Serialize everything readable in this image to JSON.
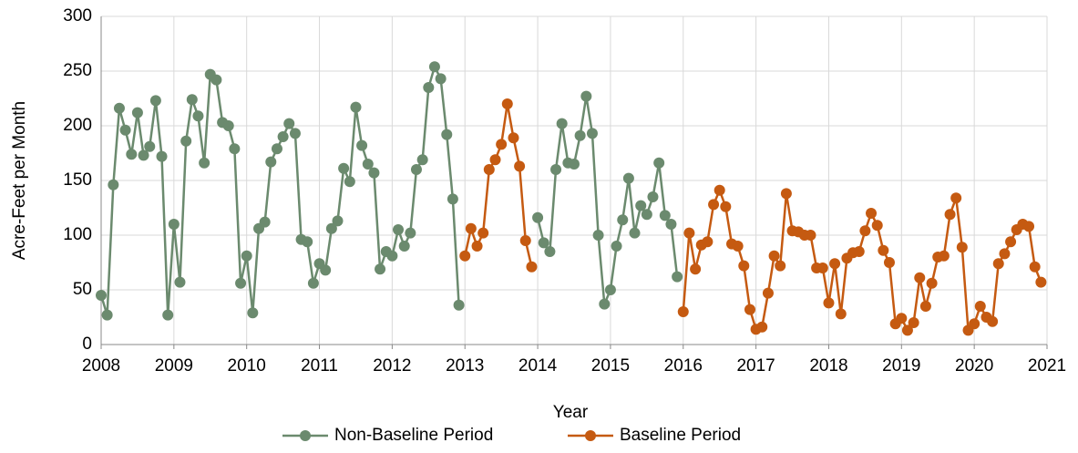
{
  "chart_data": {
    "type": "line",
    "x_label": "Year",
    "y_label": "Acre-Feet per Month",
    "x": [
      2008,
      2008.083,
      2008.167,
      2008.25,
      2008.333,
      2008.417,
      2008.5,
      2008.583,
      2008.667,
      2008.75,
      2008.833,
      2008.917,
      2009,
      2009.083,
      2009.167,
      2009.25,
      2009.333,
      2009.417,
      2009.5,
      2009.583,
      2009.667,
      2009.75,
      2009.833,
      2009.917,
      2010,
      2010.083,
      2010.167,
      2010.25,
      2010.333,
      2010.417,
      2010.5,
      2010.583,
      2010.667,
      2010.75,
      2010.833,
      2010.917,
      2011,
      2011.083,
      2011.167,
      2011.25,
      2011.333,
      2011.417,
      2011.5,
      2011.583,
      2011.667,
      2011.75,
      2011.833,
      2011.917,
      2012,
      2012.083,
      2012.167,
      2012.25,
      2012.333,
      2012.417,
      2012.5,
      2012.583,
      2012.667,
      2012.75,
      2012.833,
      2012.917,
      2013,
      2013.083,
      2013.167,
      2013.25,
      2013.333,
      2013.417,
      2013.5,
      2013.583,
      2013.667,
      2013.75,
      2013.833,
      2013.917,
      2014,
      2014.083,
      2014.167,
      2014.25,
      2014.333,
      2014.417,
      2014.5,
      2014.583,
      2014.667,
      2014.75,
      2014.833,
      2014.917,
      2015,
      2015.083,
      2015.167,
      2015.25,
      2015.333,
      2015.417,
      2015.5,
      2015.583,
      2015.667,
      2015.75,
      2015.833,
      2015.917,
      2016,
      2016.083,
      2016.167,
      2016.25,
      2016.333,
      2016.417,
      2016.5,
      2016.583,
      2016.667,
      2016.75,
      2016.833,
      2016.917,
      2017,
      2017.083,
      2017.167,
      2017.25,
      2017.333,
      2017.417,
      2017.5,
      2017.583,
      2017.667,
      2017.75,
      2017.833,
      2017.917,
      2018,
      2018.083,
      2018.167,
      2018.25,
      2018.333,
      2018.417,
      2018.5,
      2018.583,
      2018.667,
      2018.75,
      2018.833,
      2018.917,
      2019,
      2019.083,
      2019.167,
      2019.25,
      2019.333,
      2019.417,
      2019.5,
      2019.583,
      2019.667,
      2019.75,
      2019.833,
      2019.917,
      2020,
      2020.083,
      2020.167,
      2020.25,
      2020.333,
      2020.417,
      2020.5,
      2020.583,
      2020.667,
      2020.75,
      2020.833,
      2020.917
    ],
    "series": [
      {
        "name": "Non-Baseline Period",
        "color": "#6b8a6e",
        "values": [
          45,
          27,
          146,
          216,
          196,
          174,
          212,
          173,
          181,
          223,
          172,
          27,
          110,
          57,
          186,
          224,
          209,
          166,
          247,
          242,
          203,
          200,
          179,
          56,
          81,
          29,
          106,
          112,
          167,
          179,
          190,
          202,
          193,
          96,
          94,
          56,
          74,
          68,
          106,
          113,
          161,
          149,
          217,
          182,
          165,
          157,
          69,
          85,
          81,
          105,
          90,
          102,
          160,
          169,
          235,
          254,
          243,
          192,
          133,
          36,
          null,
          null,
          null,
          null,
          null,
          null,
          null,
          null,
          null,
          null,
          null,
          null,
          116,
          93,
          85,
          160,
          202,
          166,
          165,
          191,
          227,
          193,
          100,
          37,
          50,
          90,
          114,
          152,
          102,
          127,
          119,
          135,
          166,
          118,
          110,
          62,
          null,
          null,
          null,
          null,
          null,
          null,
          null,
          null,
          null,
          null,
          null,
          null,
          null,
          null,
          null,
          null,
          null,
          null,
          null,
          null,
          null,
          null,
          null,
          null,
          null,
          null,
          null,
          null,
          null,
          null,
          null,
          null,
          null,
          null,
          null,
          null,
          null,
          null,
          null,
          null,
          null,
          null,
          null,
          null,
          null,
          null,
          null,
          null,
          null,
          null,
          null,
          null,
          null,
          null,
          null,
          null,
          null,
          null,
          null,
          null
        ]
      },
      {
        "name": "Baseline Period",
        "color": "#c55a11",
        "values": [
          null,
          null,
          null,
          null,
          null,
          null,
          null,
          null,
          null,
          null,
          null,
          null,
          null,
          null,
          null,
          null,
          null,
          null,
          null,
          null,
          null,
          null,
          null,
          null,
          null,
          null,
          null,
          null,
          null,
          null,
          null,
          null,
          null,
          null,
          null,
          null,
          null,
          null,
          null,
          null,
          null,
          null,
          null,
          null,
          null,
          null,
          null,
          null,
          null,
          null,
          null,
          null,
          null,
          null,
          null,
          null,
          null,
          null,
          null,
          null,
          81,
          106,
          90,
          102,
          160,
          169,
          183,
          220,
          189,
          163,
          95,
          71,
          null,
          null,
          null,
          null,
          null,
          null,
          null,
          null,
          null,
          null,
          null,
          null,
          null,
          null,
          null,
          null,
          null,
          null,
          null,
          null,
          null,
          null,
          null,
          null,
          30,
          102,
          69,
          91,
          94,
          128,
          141,
          126,
          92,
          90,
          72,
          32,
          14,
          16,
          47,
          81,
          72,
          138,
          104,
          103,
          100,
          100,
          70,
          70,
          38,
          74,
          28,
          79,
          84,
          85,
          104,
          120,
          109,
          86,
          75,
          19,
          24,
          13,
          20,
          61,
          35,
          56,
          80,
          81,
          119,
          134,
          89,
          13,
          19,
          35,
          25,
          21,
          74,
          83,
          94,
          105,
          110,
          108,
          71,
          57
        ]
      }
    ],
    "xlim": [
      2008,
      2021
    ],
    "xticks": [
      2008,
      2009,
      2010,
      2011,
      2012,
      2013,
      2014,
      2015,
      2016,
      2017,
      2018,
      2019,
      2020,
      2021
    ],
    "ylim": [
      0,
      300
    ],
    "yticks": [
      0,
      50,
      100,
      150,
      200,
      250,
      300
    ],
    "grid": true,
    "legend": "bottom"
  }
}
